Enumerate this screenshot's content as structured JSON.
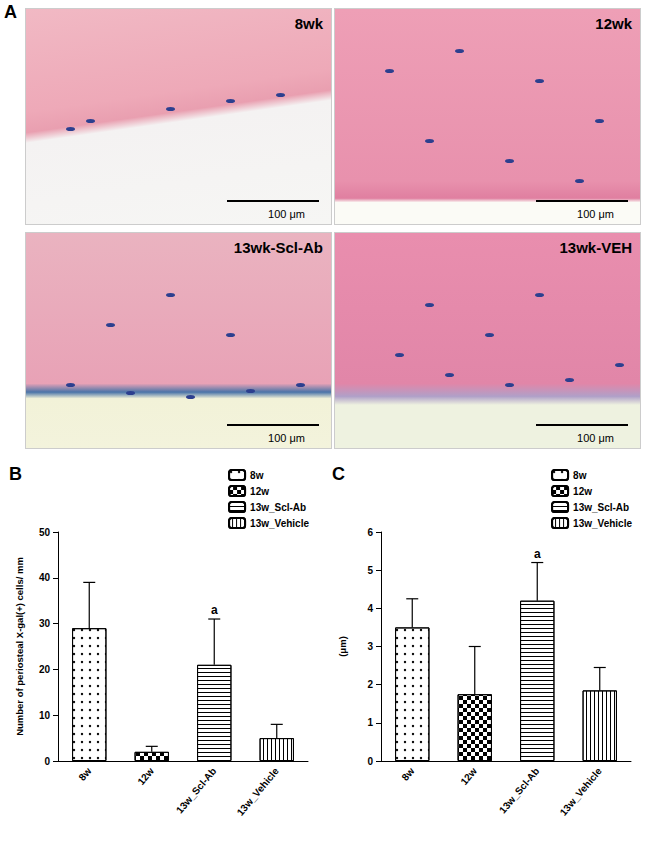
{
  "panel_A": {
    "title": "A",
    "images": [
      {
        "label": "8wk",
        "scale_bar": "100 μm"
      },
      {
        "label": "12wk",
        "scale_bar": "100 μm"
      },
      {
        "label": "13wk-Scl-Ab",
        "scale_bar": "100 μm"
      },
      {
        "label": "13wk-VEH",
        "scale_bar": "100 μm"
      }
    ]
  },
  "chart_data": [
    {
      "type": "bar",
      "title": "B",
      "y_label": "Number of periosteal X-gal(+) cells/ mm",
      "categories": [
        "8w",
        "12w",
        "13w_Scl-Ab",
        "13w_Vehicle"
      ],
      "values": [
        29,
        2,
        21,
        5
      ],
      "errors": [
        10,
        1.2,
        10,
        3
      ],
      "colors": [
        "#ffffff",
        "#ffffff",
        "#ffffff",
        "#ffffff"
      ],
      "ylim": [
        0,
        50
      ],
      "yticks": [
        0,
        10,
        20,
        30,
        40,
        50
      ],
      "grid": false,
      "legend": "top-right",
      "annotations": [
        {
          "category": "13w_Scl-Ab",
          "text": "a"
        }
      ]
    },
    {
      "type": "bar",
      "title": "C",
      "y_label": "(μm)",
      "categories": [
        "8w",
        "12w",
        "13w_Scl-Ab",
        "13w_Vehicle"
      ],
      "values": [
        3.5,
        1.75,
        4.2,
        1.85
      ],
      "errors": [
        0.75,
        1.25,
        1.0,
        0.6
      ],
      "colors": [
        "#ffffff",
        "#ffffff",
        "#ffffff",
        "#ffffff"
      ],
      "ylim": [
        0,
        6
      ],
      "yticks": [
        0,
        1,
        2,
        3,
        4,
        5,
        6
      ],
      "grid": false,
      "legend": "top-right",
      "annotations": [
        {
          "category": "13w_Scl-Ab",
          "text": "a"
        }
      ]
    }
  ]
}
